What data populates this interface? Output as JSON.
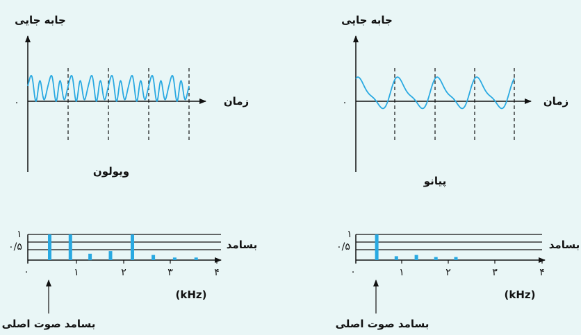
{
  "panels": [
    {
      "id": "violin",
      "displacement_label": "جابه جایی",
      "time_label": "زمان",
      "instrument_label": "ویولون",
      "origin_label": "۰",
      "frequency_label": "بسامد",
      "unit_label": "(kHz)",
      "fundamental_label": "بسامد صوت اصلی",
      "amp_ticks": [
        "۱",
        "۰/۵",
        "۰"
      ],
      "freq_ticks": [
        "۱",
        "۲",
        "۳",
        "۴"
      ],
      "chart_data": {
        "type": "bar",
        "x": [
          0.45,
          0.875,
          1.28,
          1.7,
          2.15,
          2.58,
          3.02,
          3.46
        ],
        "values": [
          1.0,
          1.0,
          0.25,
          0.35,
          1.0,
          0.2,
          0.1,
          0.1
        ],
        "xlim": [
          0,
          4
        ],
        "ylim": [
          0,
          1
        ]
      }
    },
    {
      "id": "piano",
      "displacement_label": "جابه جایی",
      "time_label": "زمان",
      "instrument_label": "پیانو",
      "origin_label": "۰",
      "frequency_label": "بسامد",
      "unit_label": "(kHz)",
      "fundamental_label": "بسامد صوت اصلی",
      "amp_ticks": [
        "۱",
        "۰/۵",
        "۰"
      ],
      "freq_ticks": [
        "۱",
        "۲",
        "۳",
        "۴"
      ],
      "chart_data": {
        "type": "bar",
        "x": [
          0.45,
          0.87,
          1.3,
          1.72,
          2.15
        ],
        "values": [
          1.0,
          0.15,
          0.2,
          0.12,
          0.12
        ],
        "xlim": [
          0,
          4
        ],
        "ylim": [
          0,
          1
        ]
      }
    }
  ],
  "colors": {
    "background": "#e9f6f6",
    "wave": "#29a9e1",
    "bar": "#29a9e1",
    "axis": "#111111"
  }
}
